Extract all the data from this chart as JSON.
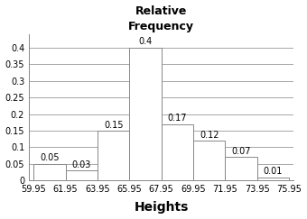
{
  "title": "Relative\nFrequency",
  "xlabel": "Heights",
  "bin_edges": [
    59.95,
    61.95,
    63.95,
    65.95,
    67.95,
    69.95,
    71.95,
    73.95,
    75.95
  ],
  "values": [
    0.05,
    0.03,
    0.15,
    0.4,
    0.17,
    0.12,
    0.07,
    0.01
  ],
  "bar_color": "#ffffff",
  "bar_edgecolor": "#888888",
  "yticks": [
    0,
    0.05,
    0.1,
    0.15,
    0.2,
    0.25,
    0.3,
    0.35,
    0.4
  ],
  "ytick_labels": [
    "0",
    "0.05",
    "0.1",
    "0.15",
    "0.2",
    "0.25",
    "0.3",
    "0.35",
    "0.4"
  ],
  "ylim": [
    0,
    0.44
  ],
  "title_fontsize": 9,
  "xlabel_fontsize": 10,
  "tick_label_fontsize": 7,
  "bar_label_fontsize": 7,
  "background_color": "#ffffff",
  "grid_color": "#999999",
  "figsize": [
    3.4,
    2.43
  ],
  "dpi": 100
}
